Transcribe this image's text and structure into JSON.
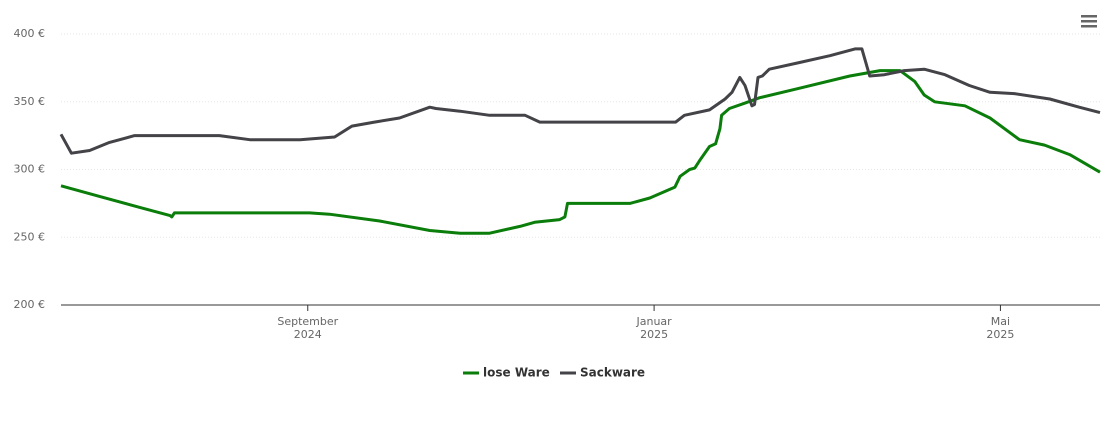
{
  "chart_data": {
    "type": "line",
    "xlim": [
      6.15,
      18.15
    ],
    "xticks": [
      {
        "value": 9,
        "label": "September\n2024"
      },
      {
        "value": 13,
        "label": "Januar\n2025"
      },
      {
        "value": 17,
        "label": "Mai\n2025"
      }
    ],
    "ylim": [
      200,
      400
    ],
    "yticks": [
      {
        "value": 200,
        "label": "200 €"
      },
      {
        "value": 250,
        "label": "250 €"
      },
      {
        "value": 300,
        "label": "300 €"
      },
      {
        "value": 350,
        "label": "350 €"
      },
      {
        "value": 400,
        "label": "400 €"
      }
    ],
    "grid": true,
    "legend": "bottom",
    "series": [
      {
        "name": "lose Ware",
        "color": "#0a7d0a",
        "x": [
          6.15,
          6.6,
          7.06,
          7.41,
          7.43,
          7.46,
          9.02,
          9.25,
          9.83,
          10.41,
          10.76,
          11.1,
          11.45,
          11.62,
          11.91,
          11.97,
          12.0,
          12.72,
          12.95,
          13.24,
          13.3,
          13.41,
          13.47,
          13.53,
          13.64,
          13.71,
          13.76,
          13.78,
          13.87,
          14.05,
          14.22,
          14.68,
          15.26,
          15.61,
          15.84,
          16.01,
          16.12,
          16.24,
          16.59,
          16.88,
          17.22,
          17.51,
          17.8,
          18.15
        ],
        "values": [
          288,
          280,
          272,
          266,
          265,
          268,
          268,
          267,
          262,
          255,
          253,
          253,
          258,
          261,
          263,
          265,
          275,
          275,
          279,
          287,
          295,
          300,
          301,
          307,
          317,
          319,
          330,
          340,
          345,
          349,
          353,
          360,
          369,
          373,
          373,
          365,
          355,
          350,
          347,
          338,
          322,
          318,
          311,
          298
        ]
      },
      {
        "name": "Sackware",
        "color": "#434348",
        "x": [
          6.15,
          6.27,
          6.48,
          6.71,
          7.0,
          7.98,
          8.33,
          8.91,
          9.31,
          9.51,
          9.77,
          10.06,
          10.41,
          10.48,
          10.76,
          11.1,
          11.51,
          11.68,
          12.37,
          13.25,
          13.35,
          13.64,
          13.82,
          13.9,
          13.99,
          14.05,
          14.13,
          14.16,
          14.2,
          14.25,
          14.33,
          14.68,
          15.03,
          15.32,
          15.4,
          15.49,
          15.66,
          15.89,
          16.12,
          16.36,
          16.64,
          16.88,
          17.16,
          17.57,
          17.91,
          18.15
        ],
        "values": [
          326,
          312,
          314,
          320,
          325,
          325,
          322,
          322,
          324,
          332,
          335,
          338,
          346,
          345,
          343,
          340,
          340,
          335,
          335,
          335,
          340,
          344,
          352,
          357,
          368,
          362,
          347,
          348,
          368,
          369,
          374,
          379,
          384,
          389,
          389,
          369,
          370,
          373,
          374,
          370,
          362,
          357,
          356,
          352,
          346,
          342
        ]
      }
    ]
  }
}
